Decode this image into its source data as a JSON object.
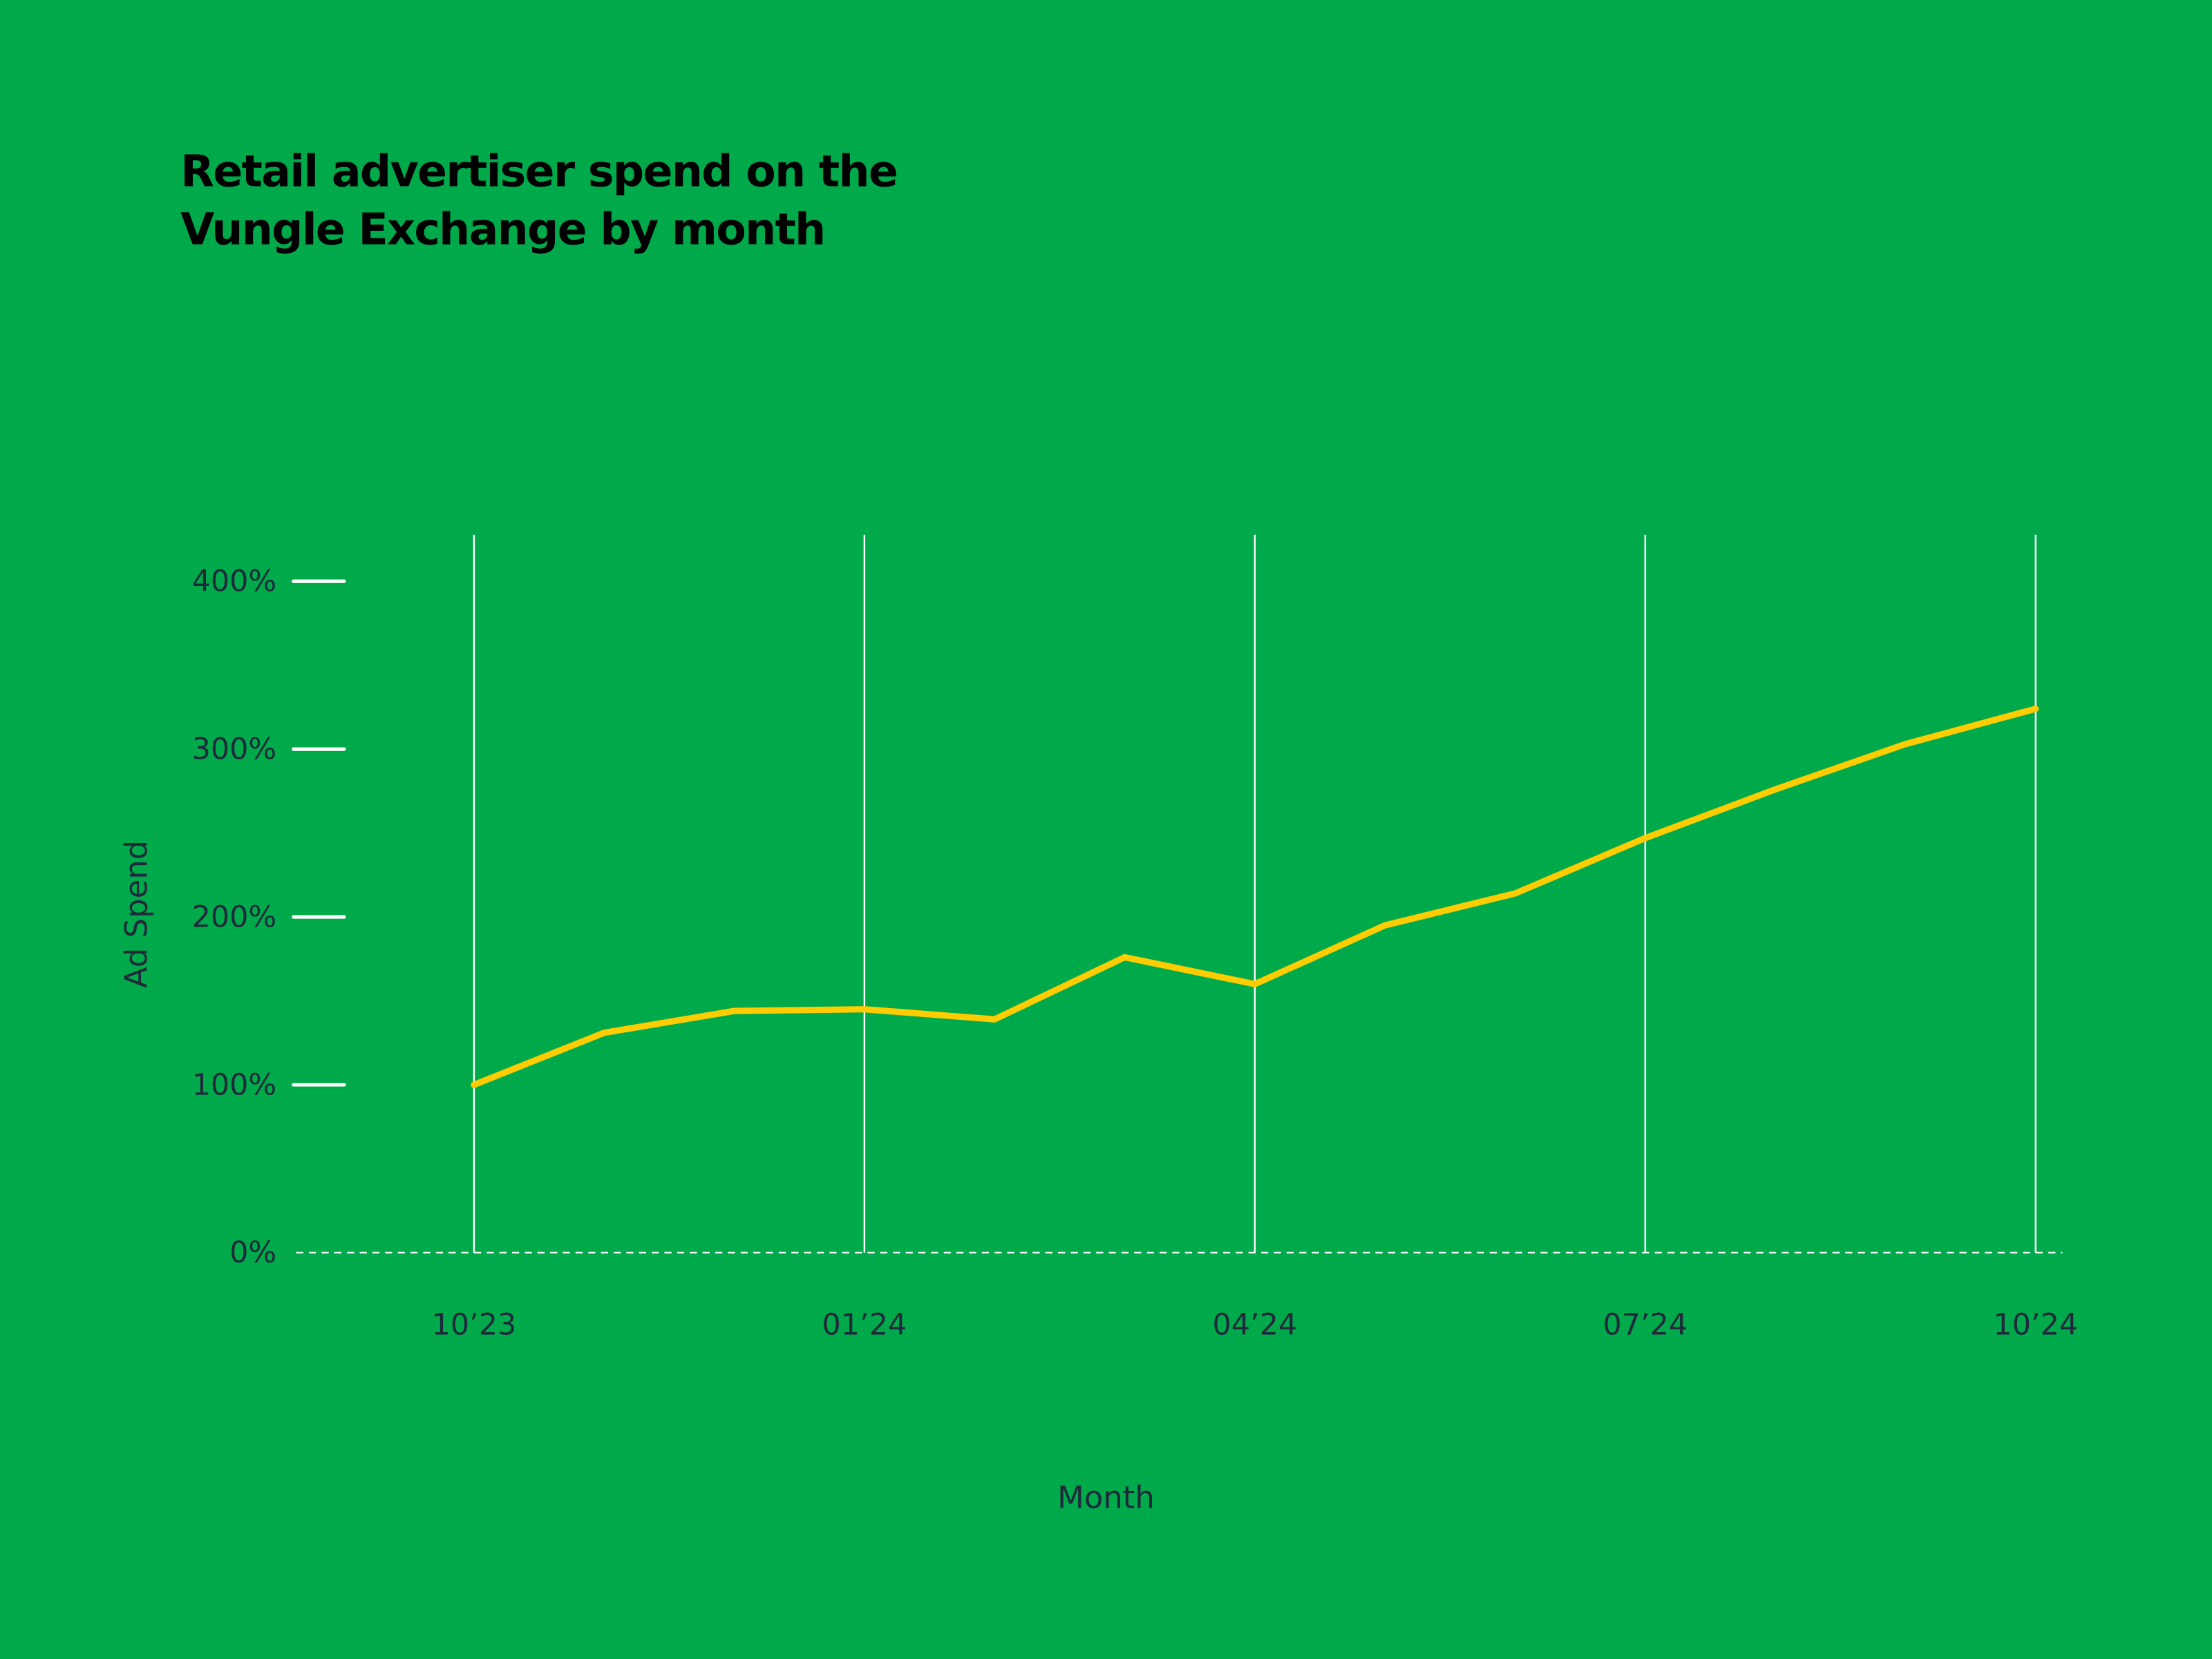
{
  "colors": {
    "background": "#00AA4B",
    "line": "#FFCC00",
    "text": "#1E2A3A",
    "grid": "#FFFFFF"
  },
  "chart_data": {
    "type": "line",
    "title": [
      "Retail advertiser spend on the",
      "Vungle Exchange by month"
    ],
    "xlabel": "Month",
    "ylabel": "Ad Spend",
    "ylim": [
      0,
      400
    ],
    "y_ticks": [
      0,
      100,
      200,
      300,
      400
    ],
    "y_tick_labels": [
      "0%",
      "100%",
      "200%",
      "300%",
      "400%"
    ],
    "x_tick_labels": [
      "10’23",
      "01’24",
      "04’24",
      "07’24",
      "10’24"
    ],
    "x_tick_index": [
      0,
      3,
      6,
      9,
      12
    ],
    "grid": "vertical lines at labeled months; dashed baseline at 0%",
    "x": [
      "10’23",
      "11’23",
      "12’23",
      "01’24",
      "02’24",
      "03’24",
      "04’24",
      "05’24",
      "06’24",
      "07’24",
      "08’24",
      "09’24",
      "10’24"
    ],
    "values": [
      100,
      131,
      144,
      145,
      139,
      176,
      160,
      195,
      214,
      247,
      276,
      303,
      324
    ]
  }
}
